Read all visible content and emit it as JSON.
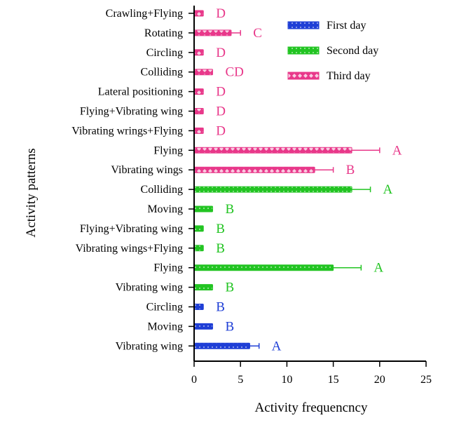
{
  "chart_data": {
    "type": "bar",
    "orientation": "horizontal",
    "xlabel": "Activity frequencncy",
    "ylabel": "Activity patterns",
    "xlim": [
      0,
      25
    ],
    "xticks": [
      0,
      5,
      10,
      15,
      20,
      25
    ],
    "grid": false,
    "legend_position": "top-right",
    "series": [
      {
        "name": "Third day",
        "color": "#e8388a",
        "pattern": "diamond",
        "items": [
          {
            "label": "Crawling+Flying",
            "value": 1,
            "error": 0,
            "letter": "D"
          },
          {
            "label": "Rotating",
            "value": 4,
            "error": 1,
            "letter": "C"
          },
          {
            "label": "Circling",
            "value": 1,
            "error": 0,
            "letter": "D"
          },
          {
            "label": "Colliding",
            "value": 2,
            "error": 0,
            "letter": "CD"
          },
          {
            "label": "Lateral positioning",
            "value": 1,
            "error": 0,
            "letter": "D"
          },
          {
            "label": "Flying+Vibrating wing",
            "value": 1,
            "error": 0,
            "letter": "D"
          },
          {
            "label": "Vibrating wrings+Flying",
            "value": 1,
            "error": 0,
            "letter": "D"
          },
          {
            "label": "Flying",
            "value": 17,
            "error": 3,
            "letter": "A"
          },
          {
            "label": "Vibrating wings",
            "value": 13,
            "error": 2,
            "letter": "B"
          }
        ]
      },
      {
        "name": "Second day",
        "color": "#22c422",
        "pattern": "dots",
        "items": [
          {
            "label": "Colliding",
            "value": 17,
            "error": 2,
            "letter": "A"
          },
          {
            "label": "Moving",
            "value": 2,
            "error": 0,
            "letter": "B"
          },
          {
            "label": "Flying+Vibrating wing",
            "value": 1,
            "error": 0,
            "letter": "B"
          },
          {
            "label": "Vibrating wings+Flying",
            "value": 1,
            "error": 0,
            "letter": "B"
          },
          {
            "label": "Flying",
            "value": 15,
            "error": 3,
            "letter": "A"
          },
          {
            "label": "Vibrating wing",
            "value": 2,
            "error": 0,
            "letter": "B"
          }
        ]
      },
      {
        "name": "First day",
        "color": "#1f3fd6",
        "pattern": "dots",
        "items": [
          {
            "label": "Circling",
            "value": 1,
            "error": 0,
            "letter": "B"
          },
          {
            "label": "Moving",
            "value": 2,
            "error": 0,
            "letter": "B"
          },
          {
            "label": "Vibrating wing",
            "value": 6,
            "error": 1,
            "letter": "A"
          }
        ]
      }
    ]
  }
}
